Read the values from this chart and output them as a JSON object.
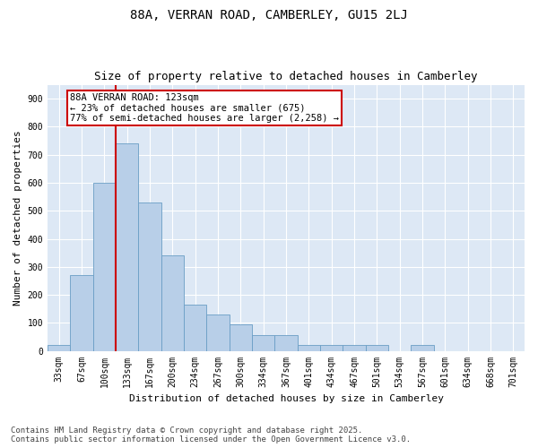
{
  "title1": "88A, VERRAN ROAD, CAMBERLEY, GU15 2LJ",
  "title2": "Size of property relative to detached houses in Camberley",
  "xlabel": "Distribution of detached houses by size in Camberley",
  "ylabel": "Number of detached properties",
  "categories": [
    "33sqm",
    "67sqm",
    "100sqm",
    "133sqm",
    "167sqm",
    "200sqm",
    "234sqm",
    "267sqm",
    "300sqm",
    "334sqm",
    "367sqm",
    "401sqm",
    "434sqm",
    "467sqm",
    "501sqm",
    "534sqm",
    "567sqm",
    "601sqm",
    "634sqm",
    "668sqm",
    "701sqm"
  ],
  "values": [
    20,
    270,
    600,
    740,
    530,
    340,
    165,
    130,
    95,
    55,
    55,
    20,
    20,
    20,
    20,
    0,
    20,
    0,
    0,
    0,
    0
  ],
  "bar_color": "#b8cfe8",
  "bar_edge_color": "#6a9ec5",
  "vline_color": "#cc0000",
  "annotation_text": "88A VERRAN ROAD: 123sqm\n← 23% of detached houses are smaller (675)\n77% of semi-detached houses are larger (2,258) →",
  "annotation_box_color": "#ffffff",
  "annotation_box_edge": "#cc0000",
  "ylim": [
    0,
    950
  ],
  "yticks": [
    0,
    100,
    200,
    300,
    400,
    500,
    600,
    700,
    800,
    900
  ],
  "background_color": "#dde8f5",
  "grid_color": "#ffffff",
  "footer_text": "Contains HM Land Registry data © Crown copyright and database right 2025.\nContains public sector information licensed under the Open Government Licence v3.0.",
  "title_fontsize": 10,
  "subtitle_fontsize": 9,
  "tick_fontsize": 7,
  "label_fontsize": 8,
  "annotation_fontsize": 7.5,
  "footer_fontsize": 6.5
}
